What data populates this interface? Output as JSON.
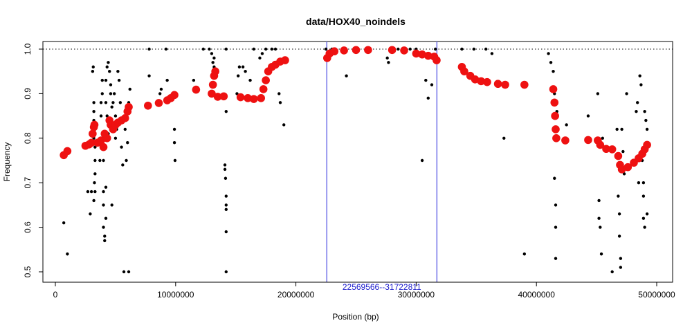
{
  "chart_data": {
    "type": "scatter",
    "title": "data/HOX40_noindels",
    "xlabel": "Position (bp)",
    "ylabel": "Frequency",
    "xlim": [
      0,
      50000000
    ],
    "ylim": [
      0.5,
      1.0
    ],
    "x_ticks": [
      0,
      10000000,
      20000000,
      30000000,
      40000000,
      50000000
    ],
    "x_tick_labels": [
      "0",
      "10000000",
      "20000000",
      "30000000",
      "40000000",
      "50000000"
    ],
    "y_ticks": [
      0.5,
      0.6,
      0.7,
      0.8,
      0.9,
      1.0
    ],
    "y_tick_labels": [
      "0.5",
      "0.6",
      "0.7",
      "0.8",
      "0.9",
      "1.0"
    ],
    "reference_line": {
      "y": 1.0,
      "style": "dotted"
    },
    "region": {
      "start": 22569566,
      "end": 31722811,
      "label": "22569566--31722811",
      "color": "#6f6fe8"
    },
    "series": [
      {
        "marker": "small-black-dot",
        "color": "#000000",
        "points": [
          [
            700000,
            0.61
          ],
          [
            1000000,
            0.54
          ],
          [
            2700000,
            0.68
          ],
          [
            2900000,
            0.63
          ],
          [
            3000000,
            0.68
          ],
          [
            3050000,
            0.79
          ],
          [
            3100000,
            0.95
          ],
          [
            3150000,
            0.96
          ],
          [
            3200000,
            0.8
          ],
          [
            3200000,
            0.84
          ],
          [
            3200000,
            0.86
          ],
          [
            3200000,
            0.88
          ],
          [
            3200000,
            0.66
          ],
          [
            3250000,
            0.7
          ],
          [
            3300000,
            0.68
          ],
          [
            3300000,
            0.72
          ],
          [
            3300000,
            0.75
          ],
          [
            3300000,
            0.78
          ],
          [
            3300000,
            0.82
          ],
          [
            3700000,
            0.75
          ],
          [
            3800000,
            0.85
          ],
          [
            3800000,
            0.88
          ],
          [
            3900000,
            0.9
          ],
          [
            3900000,
            0.93
          ],
          [
            4000000,
            0.6
          ],
          [
            4000000,
            0.65
          ],
          [
            4000000,
            0.68
          ],
          [
            4000000,
            0.75
          ],
          [
            4100000,
            0.58
          ],
          [
            4100000,
            0.57
          ],
          [
            4200000,
            0.62
          ],
          [
            4200000,
            0.69
          ],
          [
            4200000,
            0.88
          ],
          [
            4200000,
            0.93
          ],
          [
            4300000,
            0.96
          ],
          [
            4300000,
            0.85
          ],
          [
            4400000,
            0.97
          ],
          [
            4400000,
            0.81
          ],
          [
            4500000,
            0.95
          ],
          [
            4600000,
            0.9
          ],
          [
            4600000,
            0.92
          ],
          [
            4700000,
            0.87
          ],
          [
            4700000,
            0.65
          ],
          [
            4800000,
            0.88
          ],
          [
            4900000,
            0.9
          ],
          [
            5000000,
            0.8
          ],
          [
            5000000,
            0.85
          ],
          [
            5100000,
            0.82
          ],
          [
            5200000,
            0.95
          ],
          [
            5300000,
            0.93
          ],
          [
            5400000,
            0.88
          ],
          [
            5500000,
            0.78
          ],
          [
            5600000,
            0.74
          ],
          [
            5700000,
            0.5
          ],
          [
            5800000,
            0.82
          ],
          [
            5900000,
            0.75
          ],
          [
            6000000,
            0.79
          ],
          [
            6100000,
            0.88
          ],
          [
            6200000,
            0.91
          ],
          [
            6100000,
            0.5
          ],
          [
            7800000,
            1.0
          ],
          [
            7800000,
            0.94
          ],
          [
            8700000,
            0.9
          ],
          [
            8800000,
            0.91
          ],
          [
            9200000,
            1.0
          ],
          [
            9300000,
            0.93
          ],
          [
            9900000,
            0.82
          ],
          [
            9900000,
            0.79
          ],
          [
            9950000,
            0.75
          ],
          [
            11500000,
            0.93
          ],
          [
            12300000,
            1.0
          ],
          [
            12800000,
            1.0
          ],
          [
            13000000,
            0.99
          ],
          [
            13100000,
            0.97
          ],
          [
            13200000,
            0.96
          ],
          [
            13300000,
            0.94
          ],
          [
            13200000,
            0.98
          ],
          [
            14100000,
            0.73
          ],
          [
            14100000,
            0.74
          ],
          [
            14150000,
            0.71
          ],
          [
            14200000,
            0.67
          ],
          [
            14200000,
            0.65
          ],
          [
            14200000,
            0.64
          ],
          [
            14200000,
            0.59
          ],
          [
            14200000,
            0.5
          ],
          [
            14200000,
            1.0
          ],
          [
            14200000,
            0.86
          ],
          [
            15100000,
            0.9
          ],
          [
            15200000,
            0.94
          ],
          [
            15300000,
            0.96
          ],
          [
            15600000,
            0.96
          ],
          [
            15800000,
            0.95
          ],
          [
            16200000,
            0.93
          ],
          [
            16500000,
            1.0
          ],
          [
            17000000,
            0.98
          ],
          [
            17200000,
            0.99
          ],
          [
            17500000,
            1.0
          ],
          [
            18000000,
            1.0
          ],
          [
            18300000,
            1.0
          ],
          [
            18600000,
            0.9
          ],
          [
            18700000,
            0.88
          ],
          [
            19000000,
            0.83
          ],
          [
            22500000,
            1.0
          ],
          [
            22700000,
            0.99
          ],
          [
            23000000,
            1.0
          ],
          [
            23300000,
            1.0
          ],
          [
            24000000,
            1.0
          ],
          [
            24200000,
            0.94
          ],
          [
            25000000,
            1.0
          ],
          [
            26000000,
            1.0
          ],
          [
            27600000,
            0.98
          ],
          [
            27700000,
            0.97
          ],
          [
            28500000,
            1.0
          ],
          [
            29500000,
            1.0
          ],
          [
            30000000,
            1.0
          ],
          [
            30500000,
            0.75
          ],
          [
            30800000,
            0.93
          ],
          [
            31000000,
            0.89
          ],
          [
            31300000,
            0.92
          ],
          [
            31600000,
            1.0
          ],
          [
            33800000,
            1.0
          ],
          [
            34800000,
            1.0
          ],
          [
            35800000,
            1.0
          ],
          [
            36300000,
            0.99
          ],
          [
            37300000,
            0.8
          ],
          [
            39000000,
            0.54
          ],
          [
            41000000,
            0.99
          ],
          [
            41200000,
            0.97
          ],
          [
            41400000,
            0.95
          ],
          [
            41500000,
            0.9
          ],
          [
            41500000,
            0.71
          ],
          [
            41600000,
            0.65
          ],
          [
            41600000,
            0.6
          ],
          [
            41600000,
            0.53
          ],
          [
            41700000,
            0.86
          ],
          [
            41800000,
            0.8
          ],
          [
            42500000,
            0.83
          ],
          [
            44300000,
            0.85
          ],
          [
            45100000,
            0.9
          ],
          [
            45200000,
            0.66
          ],
          [
            45200000,
            0.62
          ],
          [
            45300000,
            0.6
          ],
          [
            45400000,
            0.54
          ],
          [
            45500000,
            0.8
          ],
          [
            46300000,
            0.5
          ],
          [
            46700000,
            0.82
          ],
          [
            46800000,
            0.67
          ],
          [
            46900000,
            0.63
          ],
          [
            46900000,
            0.58
          ],
          [
            47000000,
            0.53
          ],
          [
            47000000,
            0.51
          ],
          [
            47100000,
            0.82
          ],
          [
            47200000,
            0.77
          ],
          [
            47300000,
            0.72
          ],
          [
            47500000,
            0.9
          ],
          [
            48300000,
            0.86
          ],
          [
            48400000,
            0.88
          ],
          [
            48500000,
            0.7
          ],
          [
            48600000,
            0.94
          ],
          [
            48700000,
            0.92
          ],
          [
            48800000,
            0.75
          ],
          [
            48900000,
            0.7
          ],
          [
            48900000,
            0.67
          ],
          [
            48900000,
            0.62
          ],
          [
            49000000,
            0.6
          ],
          [
            49000000,
            0.86
          ],
          [
            49100000,
            0.84
          ],
          [
            49200000,
            0.82
          ],
          [
            49200000,
            0.63
          ]
        ]
      },
      {
        "marker": "large-red-dot",
        "color": "#ee1111",
        "points": [
          [
            700000,
            0.762
          ],
          [
            1000000,
            0.771
          ],
          [
            2500000,
            0.783
          ],
          [
            2800000,
            0.786
          ],
          [
            3000000,
            0.79
          ],
          [
            3100000,
            0.81
          ],
          [
            3200000,
            0.825
          ],
          [
            3250000,
            0.83
          ],
          [
            3500000,
            0.79
          ],
          [
            3800000,
            0.795
          ],
          [
            4000000,
            0.78
          ],
          [
            4100000,
            0.81
          ],
          [
            4300000,
            0.8
          ],
          [
            4500000,
            0.84
          ],
          [
            4600000,
            0.83
          ],
          [
            4800000,
            0.82
          ],
          [
            5000000,
            0.83
          ],
          [
            5200000,
            0.835
          ],
          [
            5500000,
            0.84
          ],
          [
            5800000,
            0.845
          ],
          [
            6000000,
            0.86
          ],
          [
            6100000,
            0.87
          ],
          [
            7700000,
            0.873
          ],
          [
            8600000,
            0.879
          ],
          [
            9300000,
            0.885
          ],
          [
            9600000,
            0.89
          ],
          [
            9900000,
            0.897
          ],
          [
            11700000,
            0.909
          ],
          [
            13000000,
            0.9
          ],
          [
            13100000,
            0.92
          ],
          [
            13200000,
            0.94
          ],
          [
            13300000,
            0.95
          ],
          [
            13500000,
            0.893
          ],
          [
            14000000,
            0.894
          ],
          [
            15400000,
            0.892
          ],
          [
            16000000,
            0.89
          ],
          [
            16500000,
            0.888
          ],
          [
            17100000,
            0.89
          ],
          [
            17300000,
            0.91
          ],
          [
            17500000,
            0.93
          ],
          [
            17700000,
            0.95
          ],
          [
            18000000,
            0.96
          ],
          [
            18300000,
            0.965
          ],
          [
            18700000,
            0.972
          ],
          [
            19100000,
            0.975
          ],
          [
            22600000,
            0.98
          ],
          [
            22800000,
            0.99
          ],
          [
            23200000,
            0.995
          ],
          [
            24000000,
            0.997
          ],
          [
            25000000,
            0.998
          ],
          [
            26000000,
            0.998
          ],
          [
            28000000,
            0.998
          ],
          [
            29000000,
            0.997
          ],
          [
            30000000,
            0.99
          ],
          [
            30500000,
            0.988
          ],
          [
            31000000,
            0.985
          ],
          [
            31500000,
            0.983
          ],
          [
            31700000,
            0.975
          ],
          [
            33800000,
            0.96
          ],
          [
            34000000,
            0.95
          ],
          [
            34500000,
            0.94
          ],
          [
            34900000,
            0.932
          ],
          [
            35400000,
            0.928
          ],
          [
            35900000,
            0.926
          ],
          [
            36800000,
            0.922
          ],
          [
            37400000,
            0.92
          ],
          [
            39000000,
            0.92
          ],
          [
            41400000,
            0.91
          ],
          [
            41500000,
            0.88
          ],
          [
            41550000,
            0.85
          ],
          [
            41600000,
            0.82
          ],
          [
            41650000,
            0.8
          ],
          [
            42400000,
            0.795
          ],
          [
            44300000,
            0.796
          ],
          [
            45100000,
            0.795
          ],
          [
            45300000,
            0.785
          ],
          [
            45800000,
            0.776
          ],
          [
            46300000,
            0.775
          ],
          [
            46800000,
            0.76
          ],
          [
            46950000,
            0.74
          ],
          [
            47100000,
            0.73
          ],
          [
            47600000,
            0.735
          ],
          [
            48100000,
            0.745
          ],
          [
            48500000,
            0.755
          ],
          [
            48800000,
            0.765
          ],
          [
            49000000,
            0.775
          ],
          [
            49200000,
            0.785
          ]
        ]
      }
    ],
    "grid": false,
    "legend": "none"
  }
}
